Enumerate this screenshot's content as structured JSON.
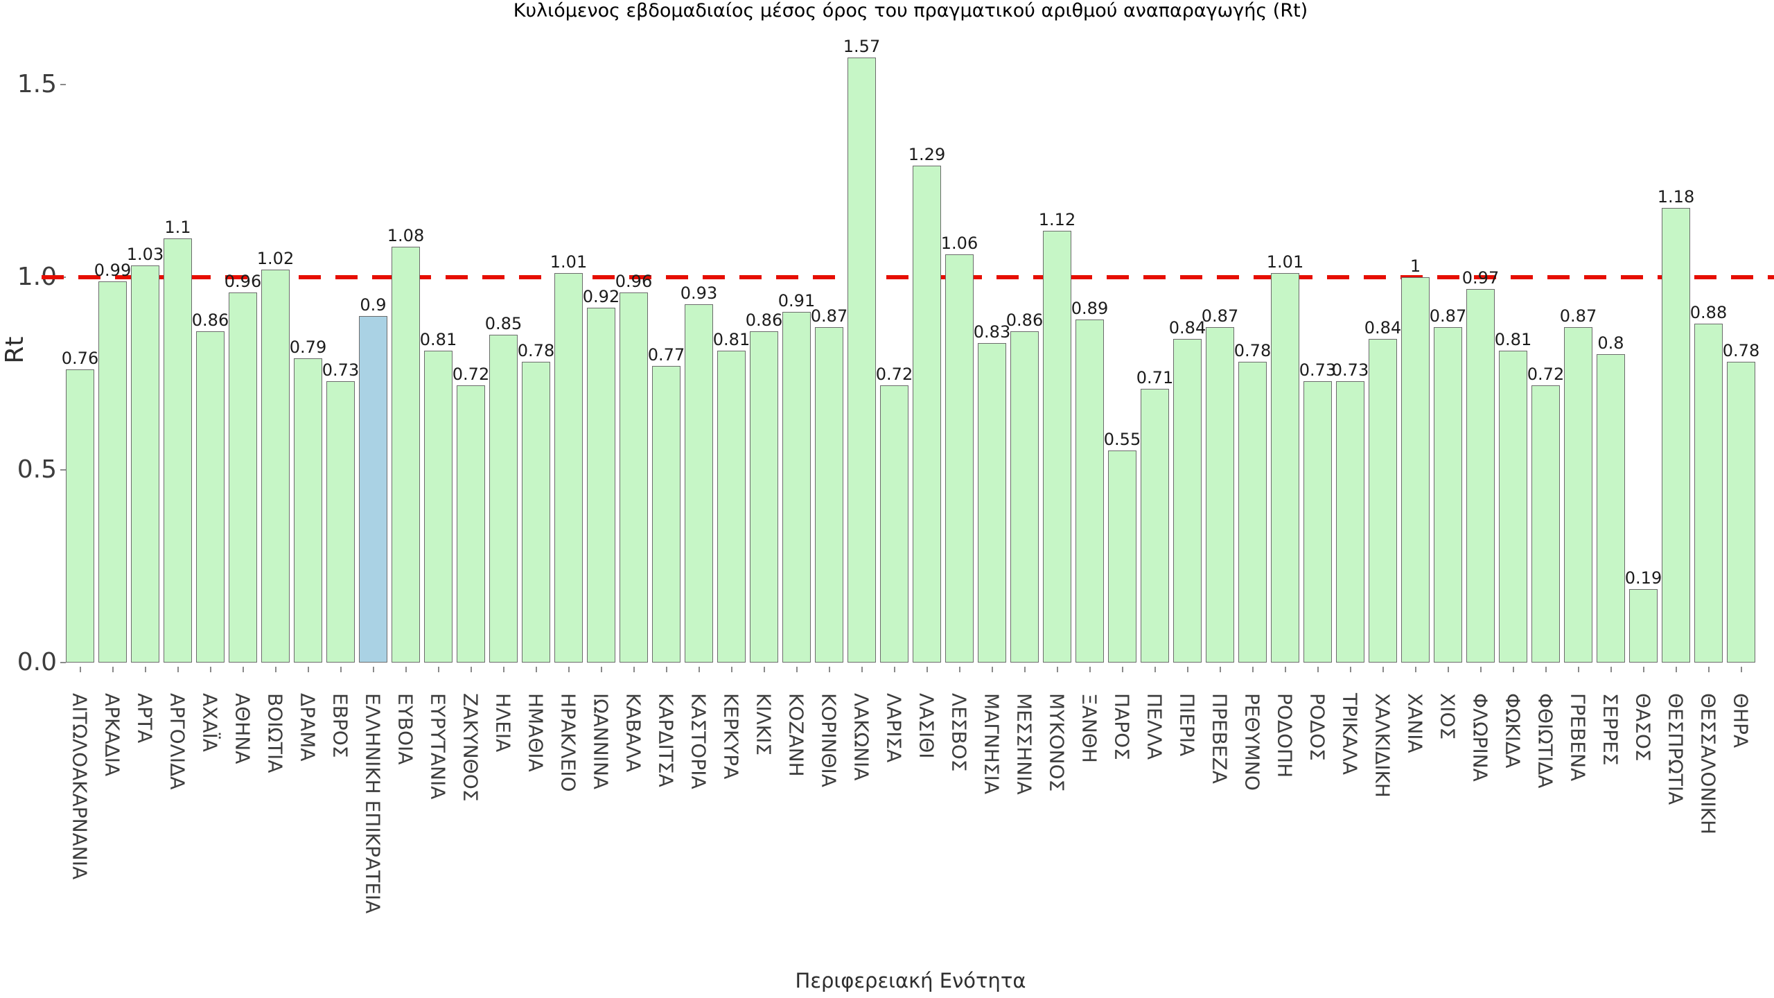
{
  "chart": {
    "title": "Κυλιόμενος εβδομαδιαίος μέσος όρος του πραγματικού αριθμού αναπαραγωγής (Rt)",
    "y_axis": {
      "title": "Rt",
      "ticks": [
        "0.0",
        "0.5",
        "1.0",
        "1.5"
      ]
    },
    "x_axis": {
      "title": "Περιφερειακή Ενότητα"
    }
  },
  "colors": {
    "bar_fill": "#c6f6c6",
    "bar_highlight": "#aad2e4",
    "bar_border": "#6b6b6b",
    "reference_line": "#e60e00"
  },
  "chart_data": {
    "type": "bar",
    "title": "Κυλιόμενος εβδομαδιαίος μέσος όρος του πραγματικού αριθμού αναπαραγωγής (Rt)",
    "xlabel": "Περιφερειακή Ενότητα",
    "ylabel": "Rt",
    "ylim": [
      0,
      1.65
    ],
    "yticks": [
      0,
      0.5,
      1.0,
      1.5
    ],
    "grid": false,
    "reference_line_y": 1.0,
    "highlight_category": "ΕΛΛΗΝΙΚΗ ΕΠΙΚΡΑΤΕΙΑ",
    "highlight_index": 9,
    "categories": [
      "ΑΙΤΩΛΟΑΚΑΡΝΑΝΙΑ",
      "ΑΡΚΑΔΙΑ",
      "ΑΡΤΑ",
      "ΑΡΓΟΛΙΔΑ",
      "ΑΧΑΪΑ",
      "ΑΘΗΝΑ",
      "ΒΟΙΩΤΙΑ",
      "ΔΡΑΜΑ",
      "ΕΒΡΟΣ",
      "ΕΛΛΗΝΙΚΗ ΕΠΙΚΡΑΤΕΙΑ",
      "ΕΥΒΟΙΑ",
      "ΕΥΡΥΤΑΝΙΑ",
      "ΖΑΚΥΝΘΟΣ",
      "ΗΛΕΙΑ",
      "ΗΜΑΘΙΑ",
      "ΗΡΑΚΛΕΙΟ",
      "ΙΩΑΝΝΙΝΑ",
      "ΚΑΒΑΛΑ",
      "ΚΑΡΔΙΤΣΑ",
      "ΚΑΣΤΟΡΙΑ",
      "ΚΕΡΚΥΡΑ",
      "ΚΙΛΚΙΣ",
      "ΚΟΖΑΝΗ",
      "ΚΟΡΙΝΘΙΑ",
      "ΛΑΚΩΝΙΑ",
      "ΛΑΡΙΣΑ",
      "ΛΑΣΙΘΙ",
      "ΛΕΣΒΟΣ",
      "ΜΑΓΝΗΣΙΑ",
      "ΜΕΣΣΗΝΙΑ",
      "ΜΥΚΟΝΟΣ",
      "ΞΑΝΘΗ",
      "ΠΑΡΟΣ",
      "ΠΕΛΛΑ",
      "ΠΙΕΡΙΑ",
      "ΠΡΕΒΕΖΑ",
      "ΡΕΘΥΜΝΟ",
      "ΡΟΔΟΠΗ",
      "ΡΟΔΟΣ",
      "ΤΡΙΚΑΛΑ",
      "ΧΑΛΚΙΔΙΚΗ",
      "ΧΑΝΙΑ",
      "ΧΙΟΣ",
      "ΦΛΩΡΙΝΑ",
      "ΦΩΚΙΔΑ",
      "ΦΘΙΩΤΙΔΑ",
      "ΓΡΕΒΕΝΑ",
      "ΣΕΡΡΕΣ",
      "ΘΑΣΟΣ",
      "ΘΕΣΠΡΩΤΙΑ",
      "ΘΕΣΣΑΛΟΝΙΚΗ",
      "ΘΗΡΑ"
    ],
    "values": [
      0.76,
      0.99,
      1.03,
      1.1,
      0.86,
      0.96,
      1.02,
      0.79,
      0.73,
      0.9,
      1.08,
      0.81,
      0.72,
      0.85,
      0.78,
      1.01,
      0.92,
      0.96,
      0.77,
      0.93,
      0.81,
      0.86,
      0.91,
      0.87,
      1.57,
      0.72,
      1.29,
      1.06,
      0.83,
      0.86,
      1.12,
      0.89,
      0.55,
      0.71,
      0.84,
      0.87,
      0.78,
      1.01,
      0.73,
      0.73,
      0.84,
      1.0,
      0.87,
      0.97,
      0.81,
      0.72,
      0.87,
      0.8,
      0.19,
      1.18,
      0.88,
      0.78
    ],
    "value_labels": [
      "0.76",
      "0.99",
      "1.03",
      "1.1",
      "0.86",
      "0.96",
      "1.02",
      "0.79",
      "0.73",
      "0.9",
      "1.08",
      "0.81",
      "0.72",
      "0.85",
      "0.78",
      "1.01",
      "0.92",
      "0.96",
      "0.77",
      "0.93",
      "0.81",
      "0.86",
      "0.91",
      "0.87",
      "1.57",
      "0.72",
      "1.29",
      "1.06",
      "0.83",
      "0.86",
      "1.12",
      "0.89",
      "0.55",
      "0.71",
      "0.84",
      "0.87",
      "0.78",
      "1.01",
      "0.73",
      "0.73",
      "0.84",
      "1",
      "0.87",
      "0.97",
      "0.81",
      "0.72",
      "0.87",
      "0.8",
      "0.19",
      "1.18",
      "0.88",
      "0.78"
    ]
  }
}
